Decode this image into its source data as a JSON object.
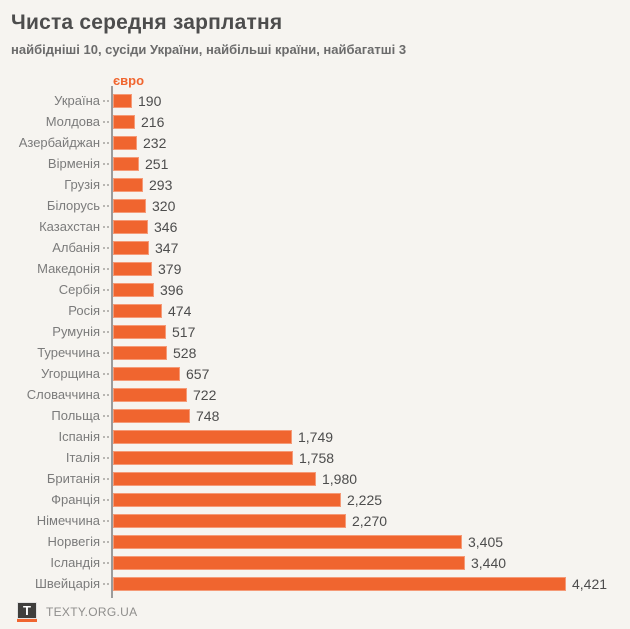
{
  "header": {
    "title": "Чиста середня зарплатня",
    "subtitle": "найбідніші 10, сусіди України, найбільші країни, найбагатші 3"
  },
  "chart_data": {
    "type": "bar",
    "orientation": "horizontal",
    "unit_label": "євро",
    "categories": [
      "Україна",
      "Молдова",
      "Азербайджан",
      "Вірменія",
      "Грузія",
      "Білорусь",
      "Казахстан",
      "Албанія",
      "Македонія",
      "Сербія",
      "Росія",
      "Румунія",
      "Туреччина",
      "Угорщина",
      "Словаччина",
      "Польща",
      "Іспанія",
      "Італія",
      "Британія",
      "Франція",
      "Німеччина",
      "Норвегія",
      "Ісландія",
      "Швейцарія"
    ],
    "values": [
      190,
      216,
      232,
      251,
      293,
      320,
      346,
      347,
      379,
      396,
      474,
      517,
      528,
      657,
      722,
      748,
      1749,
      1758,
      1980,
      2225,
      2270,
      3405,
      3440,
      4421
    ],
    "value_labels": [
      "190",
      "216",
      "232",
      "251",
      "293",
      "320",
      "346",
      "347",
      "379",
      "396",
      "474",
      "517",
      "528",
      "657",
      "722",
      "748",
      "1,749",
      "1,758",
      "1,980",
      "2,225",
      "2,270",
      "3,405",
      "3,440",
      "4,421"
    ],
    "xlim": [
      0,
      4421
    ],
    "grid": false,
    "legend": "none",
    "bar_color": "#F0652F",
    "axis_color": "#9B9B9B",
    "background_color": "#F6F4F0"
  },
  "footer": {
    "logo_letter": "T",
    "site": "TEXTY.ORG.UA"
  },
  "colors": {
    "accent": "#F0652F",
    "title_text": "#4D4D4D",
    "subtitle_text": "#6B6B6B",
    "category_text": "#7B7B7B",
    "value_text": "#4D4D4D"
  }
}
